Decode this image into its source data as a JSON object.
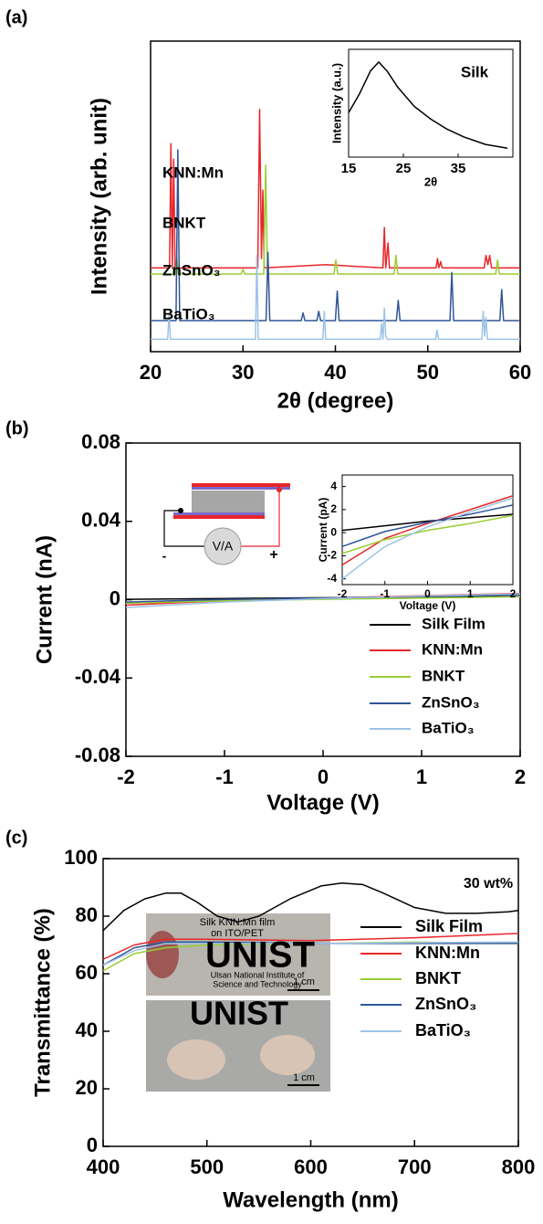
{
  "chart_data": [
    {
      "type": "line",
      "panel_label": "(a)",
      "y_label": "Intensity (arb. unit)",
      "x_label": "2θ (degree)",
      "xlim": [
        20,
        60
      ],
      "xticks": [
        20,
        30,
        40,
        50,
        60
      ],
      "ylim": [
        0,
        100
      ],
      "series": [
        {
          "name": "KNN:Mn",
          "color": "#e8262a",
          "x": [
            20,
            22.05,
            22.2,
            22.35,
            22.5,
            22.65,
            22.8,
            31.6,
            31.8,
            32.0,
            32.15,
            32.3,
            39,
            45.15,
            45.3,
            45.45,
            45.7,
            45.85,
            46,
            50.9,
            51.05,
            51.2,
            51.4,
            51.55,
            51.7,
            56.1,
            56.3,
            56.5,
            56.7,
            56.9,
            60
          ],
          "values": [
            27,
            27,
            67,
            27,
            62,
            27,
            27,
            27,
            78,
            30,
            52,
            27,
            28,
            27,
            40,
            27,
            35,
            27,
            27,
            27,
            30,
            27,
            29,
            27,
            27,
            27,
            31,
            28,
            31,
            27,
            27
          ]
        },
        {
          "name": "BNKT",
          "color": "#9acd32",
          "x": [
            20,
            22.7,
            22.85,
            23.0,
            29.8,
            30.0,
            30.2,
            32.25,
            32.45,
            32.65,
            39.85,
            40.05,
            40.25,
            46.35,
            46.55,
            46.75,
            57.35,
            57.55,
            57.75,
            60
          ],
          "values": [
            25,
            25,
            30,
            25,
            25,
            26.5,
            25,
            25,
            60,
            25,
            25,
            29.5,
            25,
            25,
            31,
            25,
            25,
            29.5,
            25,
            25
          ]
        },
        {
          "name": "ZnSnO₃",
          "color": "#2f5597",
          "x": [
            20,
            22.75,
            22.95,
            23.15,
            32.5,
            32.7,
            32.9,
            36.3,
            36.5,
            36.7,
            38.0,
            38.2,
            38.4,
            40.0,
            40.2,
            40.4,
            46.6,
            46.8,
            47.0,
            52.4,
            52.6,
            52.8,
            57.8,
            58.0,
            58.2,
            60
          ],
          "values": [
            10,
            10,
            65,
            10,
            10,
            32,
            10,
            10,
            12.5,
            10,
            10,
            13,
            10,
            10,
            19.5,
            10,
            10,
            16.5,
            10,
            10,
            25.5,
            10,
            10,
            20,
            10,
            10
          ]
        },
        {
          "name": "BaTiO₃",
          "color": "#9dc3e6",
          "x": [
            20,
            21.85,
            22.0,
            22.15,
            31.35,
            31.5,
            31.65,
            38.65,
            38.8,
            38.95,
            44.85,
            45.0,
            45.15,
            45.3,
            45.45,
            45.6,
            50.85,
            51.0,
            51.15,
            55.85,
            56.0,
            56.15,
            56.3,
            56.45,
            60
          ],
          "values": [
            4,
            4,
            12,
            4,
            4,
            31,
            4,
            4,
            13,
            4,
            4,
            9,
            4,
            14,
            5,
            4,
            4,
            7,
            4,
            4,
            13,
            5,
            11,
            4,
            4
          ]
        }
      ],
      "inset": {
        "type": "line",
        "y_label": "Intensity (a.u.)",
        "x_label": "2θ",
        "xlim": [
          15,
          45
        ],
        "xticks": [
          15,
          25,
          35
        ],
        "ylim": [
          0.2,
          1.05
        ],
        "series": [
          {
            "name": "Silk",
            "color": "#000000",
            "x": [
              15,
              17,
              19,
              20.5,
              22,
              24,
              27,
              30,
              33,
              36,
              40,
              44
            ],
            "values": [
              0.55,
              0.7,
              0.88,
              0.95,
              0.88,
              0.75,
              0.6,
              0.5,
              0.42,
              0.36,
              0.3,
              0.27
            ]
          }
        ]
      }
    },
    {
      "type": "line",
      "panel_label": "(b)",
      "y_label": "Current (nA)",
      "x_label": "Voltage (V)",
      "xlim": [
        -2,
        2
      ],
      "xticks": [
        -2,
        -1,
        0,
        1,
        2
      ],
      "ylim": [
        -0.08,
        0.08
      ],
      "yticks": [
        -0.08,
        -0.04,
        0,
        0.04,
        0.08
      ],
      "legend": "lower right",
      "diagram_labels": [
        "V/A",
        "-",
        "+"
      ],
      "series": [
        {
          "name": "Silk Film",
          "color": "#000000",
          "x": [
            -2,
            -1,
            0,
            1,
            2
          ],
          "values": [
            0.0002,
            0.0006,
            0.001,
            0.0013,
            0.0016
          ]
        },
        {
          "name": "KNN:Mn",
          "color": "#e8262a",
          "x": [
            -2,
            -1,
            0,
            1,
            2
          ],
          "values": [
            -0.0028,
            -0.0005,
            0.0008,
            0.002,
            0.0032
          ]
        },
        {
          "name": "BNKT",
          "color": "#9acd32",
          "x": [
            -2,
            -1,
            0,
            1,
            2
          ],
          "values": [
            -0.0018,
            -0.0006,
            0.0002,
            0.0008,
            0.0015
          ]
        },
        {
          "name": "ZnSnO₃",
          "color": "#2f5597",
          "x": [
            -2,
            -1,
            0,
            1,
            2
          ],
          "values": [
            -0.0012,
            0.0001,
            0.0009,
            0.0016,
            0.0024
          ]
        },
        {
          "name": "BaTiO₃",
          "color": "#9dc3e6",
          "x": [
            -2,
            -1,
            0,
            1,
            2
          ],
          "values": [
            -0.004,
            -0.0012,
            0.0005,
            0.0018,
            0.003
          ]
        }
      ],
      "inset": {
        "type": "line",
        "y_label": "Current (pA)",
        "x_label": "Voltage (V)",
        "xlim": [
          -2,
          2
        ],
        "xticks": [
          -2,
          -1,
          0,
          1,
          2
        ],
        "ylim": [
          -4.5,
          5
        ],
        "yticks": [
          -4,
          -2,
          0,
          2,
          4
        ],
        "series": [
          {
            "color": "#000000",
            "x": [
              -2,
              -1,
              0,
              1,
              2
            ],
            "values": [
              0.2,
              0.6,
              1.0,
              1.3,
              1.6
            ]
          },
          {
            "color": "#e8262a",
            "x": [
              -2,
              -1,
              0,
              1,
              2
            ],
            "values": [
              -2.8,
              -0.5,
              0.8,
              2.0,
              3.2
            ]
          },
          {
            "color": "#9acd32",
            "x": [
              -2,
              -1,
              0,
              1,
              2
            ],
            "values": [
              -1.8,
              -0.6,
              0.2,
              0.8,
              1.5
            ]
          },
          {
            "color": "#2f5597",
            "x": [
              -2,
              -1,
              0,
              1,
              2
            ],
            "values": [
              -1.2,
              0.1,
              0.9,
              1.6,
              2.4
            ]
          },
          {
            "color": "#9dc3e6",
            "x": [
              -2,
              -1,
              0,
              1,
              2
            ],
            "values": [
              -4,
              -1.2,
              0.5,
              1.8,
              3.0
            ]
          }
        ]
      }
    },
    {
      "type": "line",
      "panel_label": "(c)",
      "y_label": "Transmittance (%)",
      "x_label": "Wavelength (nm)",
      "annotation": "30 wt%",
      "legend": "right",
      "xlim": [
        400,
        800
      ],
      "xticks": [
        400,
        500,
        600,
        700,
        800
      ],
      "ylim": [
        0,
        100
      ],
      "yticks": [
        0,
        20,
        40,
        60,
        80,
        100
      ],
      "photo_texts": [
        "Silk KNN:Mn film",
        "on ITO/PET",
        "UNIST",
        "Ulsan National Institute of",
        "Science and Technology",
        "1 cm",
        "UNIST",
        "1 cm"
      ],
      "series": [
        {
          "name": "Silk Film",
          "color": "#000000",
          "x": [
            400,
            420,
            440,
            460,
            475,
            490,
            510,
            530,
            550,
            580,
            610,
            630,
            650,
            670,
            700,
            730,
            760,
            790,
            800
          ],
          "values": [
            75,
            82,
            86,
            88,
            88,
            85,
            80,
            78,
            80,
            86,
            90.5,
            91.5,
            91,
            88,
            83,
            81,
            81,
            81.5,
            82
          ]
        },
        {
          "name": "KNN:Mn",
          "color": "#e8262a",
          "x": [
            400,
            430,
            460,
            500,
            600,
            700,
            800
          ],
          "values": [
            65,
            70,
            72,
            72,
            71.5,
            72.5,
            74
          ]
        },
        {
          "name": "BNKT",
          "color": "#9acd32",
          "x": [
            400,
            430,
            460,
            500,
            600,
            700,
            800
          ],
          "values": [
            61,
            67,
            69,
            70,
            70.5,
            71,
            70.5
          ]
        },
        {
          "name": "ZnSnO₃",
          "color": "#2f5597",
          "x": [
            400,
            430,
            460,
            500,
            600,
            700,
            800
          ],
          "values": [
            63,
            69,
            71,
            71,
            70.5,
            70.5,
            70.5
          ]
        },
        {
          "name": "BaTiO₃",
          "color": "#9dc3e6",
          "x": [
            400,
            430,
            460,
            500,
            600,
            700,
            800
          ],
          "values": [
            63,
            68,
            70.5,
            70.5,
            70.5,
            70.8,
            71
          ]
        }
      ]
    }
  ]
}
